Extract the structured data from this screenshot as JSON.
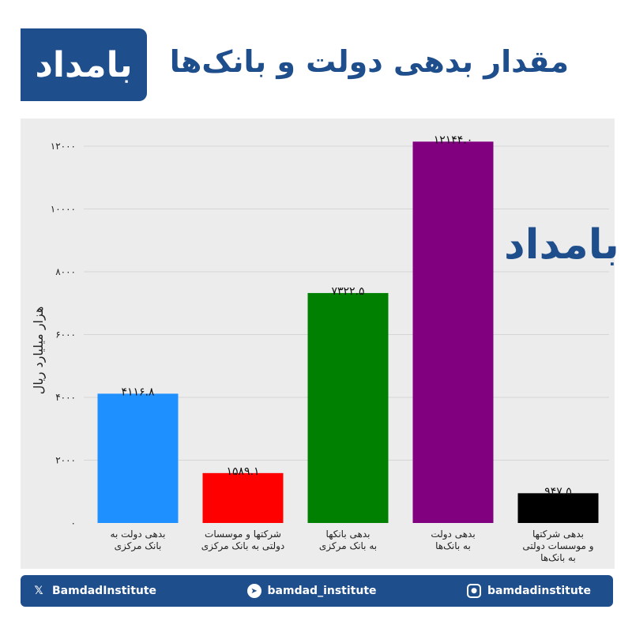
{
  "header": {
    "logo_text": "بامداد",
    "title": "مقدار بدهی دولت و بانک‌ها"
  },
  "watermark_text": "بامداد",
  "colors": {
    "brand": "#1f4e8c",
    "plot_bg": "#ececec"
  },
  "chart_data": {
    "type": "bar",
    "ylabel": "هزار میلیارد ریال",
    "ylim": [
      0,
      12000
    ],
    "yticks": [
      0,
      2000,
      4000,
      6000,
      8000,
      10000,
      12000
    ],
    "ytick_labels": [
      "۰",
      "۲۰۰۰",
      "۴۰۰۰",
      "۶۰۰۰",
      "۸۰۰۰",
      "۱۰۰۰۰",
      "۱۲۰۰۰"
    ],
    "grid": true,
    "bars": [
      {
        "label_lines": [
          "بدهی دولت به",
          "بانک مرکزی"
        ],
        "value": 4116.8,
        "value_label": "۴۱۱۶.۸",
        "color": "#1e90ff"
      },
      {
        "label_lines": [
          "شرکتها و موسسات",
          "دولتی به بانک مرکزی"
        ],
        "value": 1589.1,
        "value_label": "۱۵۸۹.۱",
        "color": "#ff0000"
      },
      {
        "label_lines": [
          "بدهی بانکها",
          "به بانک مرکزی"
        ],
        "value": 7322.5,
        "value_label": "۷۳۲۲.۵",
        "color": "#008000"
      },
      {
        "label_lines": [
          "بدهی دولت",
          "به بانک‌ها"
        ],
        "value": 12144.0,
        "value_label": "۱۲۱۴۴.۰",
        "color": "#800080"
      },
      {
        "label_lines": [
          "بدهی شرکتها",
          "و موسسات دولتی",
          "به بانک‌ها"
        ],
        "value": 947.5,
        "value_label": "۹۴۷.۵",
        "color": "#000000"
      }
    ]
  },
  "footer": {
    "x_handle": "BamdadInstitute",
    "telegram_handle": "bamdad_institute",
    "instagram_handle": "bamdadinstitute",
    "x_icon": "x-logo-icon",
    "telegram_icon": "telegram-icon",
    "instagram_icon": "instagram-icon"
  }
}
